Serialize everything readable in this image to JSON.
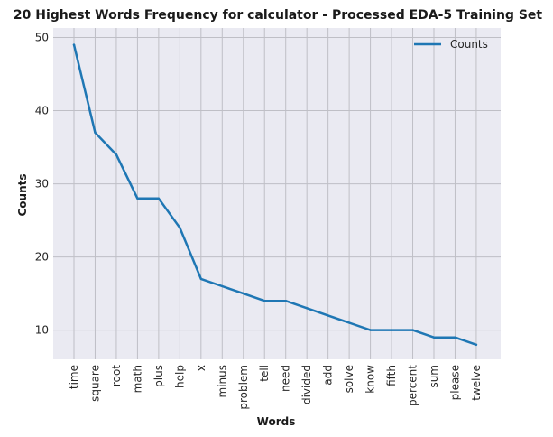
{
  "chart_data": {
    "type": "line",
    "title": "20 Highest Words Frequency for calculator - Processed EDA-5 Training Set",
    "xlabel": "Words",
    "ylabel": "Counts",
    "categories": [
      "time",
      "square",
      "root",
      "math",
      "plus",
      "help",
      "x",
      "minus",
      "problem",
      "tell",
      "need",
      "divided",
      "add",
      "solve",
      "know",
      "fifth",
      "percent",
      "sum",
      "please",
      "twelve"
    ],
    "series": [
      {
        "name": "Counts",
        "values": [
          49,
          37,
          34,
          28,
          28,
          24,
          17,
          16,
          15,
          14,
          14,
          13,
          12,
          11,
          10,
          10,
          10,
          9,
          9,
          8
        ]
      }
    ],
    "yticks": [
      10,
      20,
      30,
      40,
      50
    ],
    "ylim": [
      6,
      51.3
    ],
    "grid": true,
    "legend_position": "top-right",
    "colors": {
      "line": "#1f77b4",
      "plot_background": "#eaeaf2",
      "grid": "#bfbfc6"
    }
  }
}
